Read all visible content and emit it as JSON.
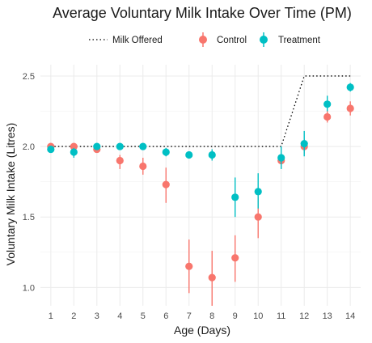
{
  "chart_data": {
    "type": "scatter",
    "title": "Average Voluntary Milk Intake Over Time (PM)",
    "xlabel": "Age (Days)",
    "ylabel": "Voluntary Milk Intake (Litres)",
    "x": [
      1,
      2,
      3,
      4,
      5,
      6,
      7,
      8,
      9,
      10,
      11,
      12,
      13,
      14
    ],
    "x_ticks": [
      "1",
      "2",
      "3",
      "4",
      "5",
      "6",
      "7",
      "8",
      "9",
      "10",
      "11",
      "12",
      "13",
      "14"
    ],
    "y_ticks": [
      "1.0",
      "1.5",
      "2.0",
      "2.5"
    ],
    "ylim": [
      0.87,
      2.58
    ],
    "grid": true,
    "legend_position": "top",
    "legend": {
      "offered_label": "Milk Offered",
      "control_label": "Control",
      "treatment_label": "Treatment"
    },
    "milk_offered": {
      "name": "Milk Offered",
      "style": "dotted",
      "color": "#000000",
      "values": [
        2.0,
        2.0,
        2.0,
        2.0,
        2.0,
        2.0,
        2.0,
        2.0,
        2.0,
        2.0,
        2.0,
        2.5,
        2.5,
        2.5
      ]
    },
    "series": [
      {
        "name": "Control",
        "color": "#F8766D",
        "values": [
          2.0,
          2.0,
          1.98,
          1.9,
          1.86,
          1.73,
          1.15,
          1.07,
          1.21,
          1.5,
          1.9,
          2.0,
          2.21,
          2.27
        ],
        "err_low": [
          1.99,
          1.99,
          1.96,
          1.84,
          1.8,
          1.6,
          0.96,
          0.87,
          1.04,
          1.35,
          1.85,
          1.95,
          2.17,
          2.22
        ],
        "err_high": [
          2.01,
          2.01,
          2.0,
          1.94,
          1.92,
          1.85,
          1.34,
          1.26,
          1.37,
          1.64,
          1.95,
          2.05,
          2.25,
          2.32
        ]
      },
      {
        "name": "Treatment",
        "color": "#00BFC4",
        "values": [
          1.98,
          1.96,
          2.0,
          2.0,
          2.0,
          1.96,
          1.94,
          1.94,
          1.64,
          1.68,
          1.92,
          2.02,
          2.3,
          2.42
        ],
        "err_low": [
          1.96,
          1.92,
          1.98,
          1.98,
          1.98,
          1.93,
          1.92,
          1.9,
          1.5,
          1.56,
          1.84,
          1.93,
          2.25,
          2.39
        ],
        "err_high": [
          2.0,
          1.99,
          2.02,
          2.02,
          2.02,
          1.99,
          1.96,
          1.98,
          1.78,
          1.81,
          2.0,
          2.11,
          2.36,
          2.45
        ]
      }
    ]
  }
}
